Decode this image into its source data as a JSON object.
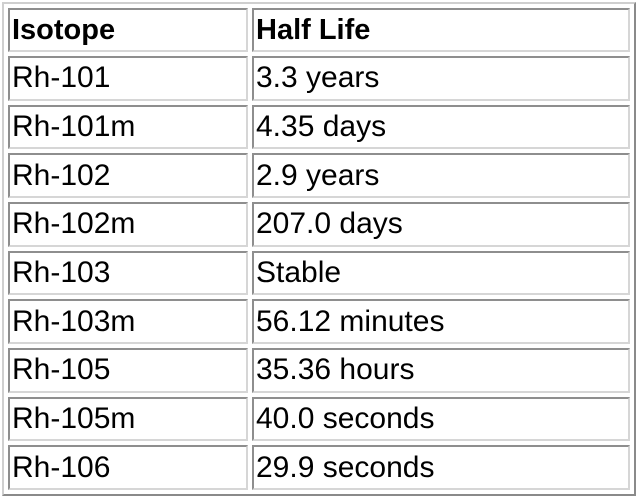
{
  "table": {
    "headers": [
      "Isotope",
      "Half Life"
    ],
    "rows": [
      [
        "Rh-101",
        "3.3 years"
      ],
      [
        "Rh-101m",
        "4.35 days"
      ],
      [
        "Rh-102",
        "2.9 years"
      ],
      [
        "Rh-102m",
        "207.0 days"
      ],
      [
        "Rh-103",
        "Stable"
      ],
      [
        "Rh-103m",
        "56.12 minutes"
      ],
      [
        "Rh-105",
        "35.36 hours"
      ],
      [
        "Rh-105m",
        "40.0 seconds"
      ],
      [
        "Rh-106",
        "29.9 seconds"
      ]
    ]
  }
}
